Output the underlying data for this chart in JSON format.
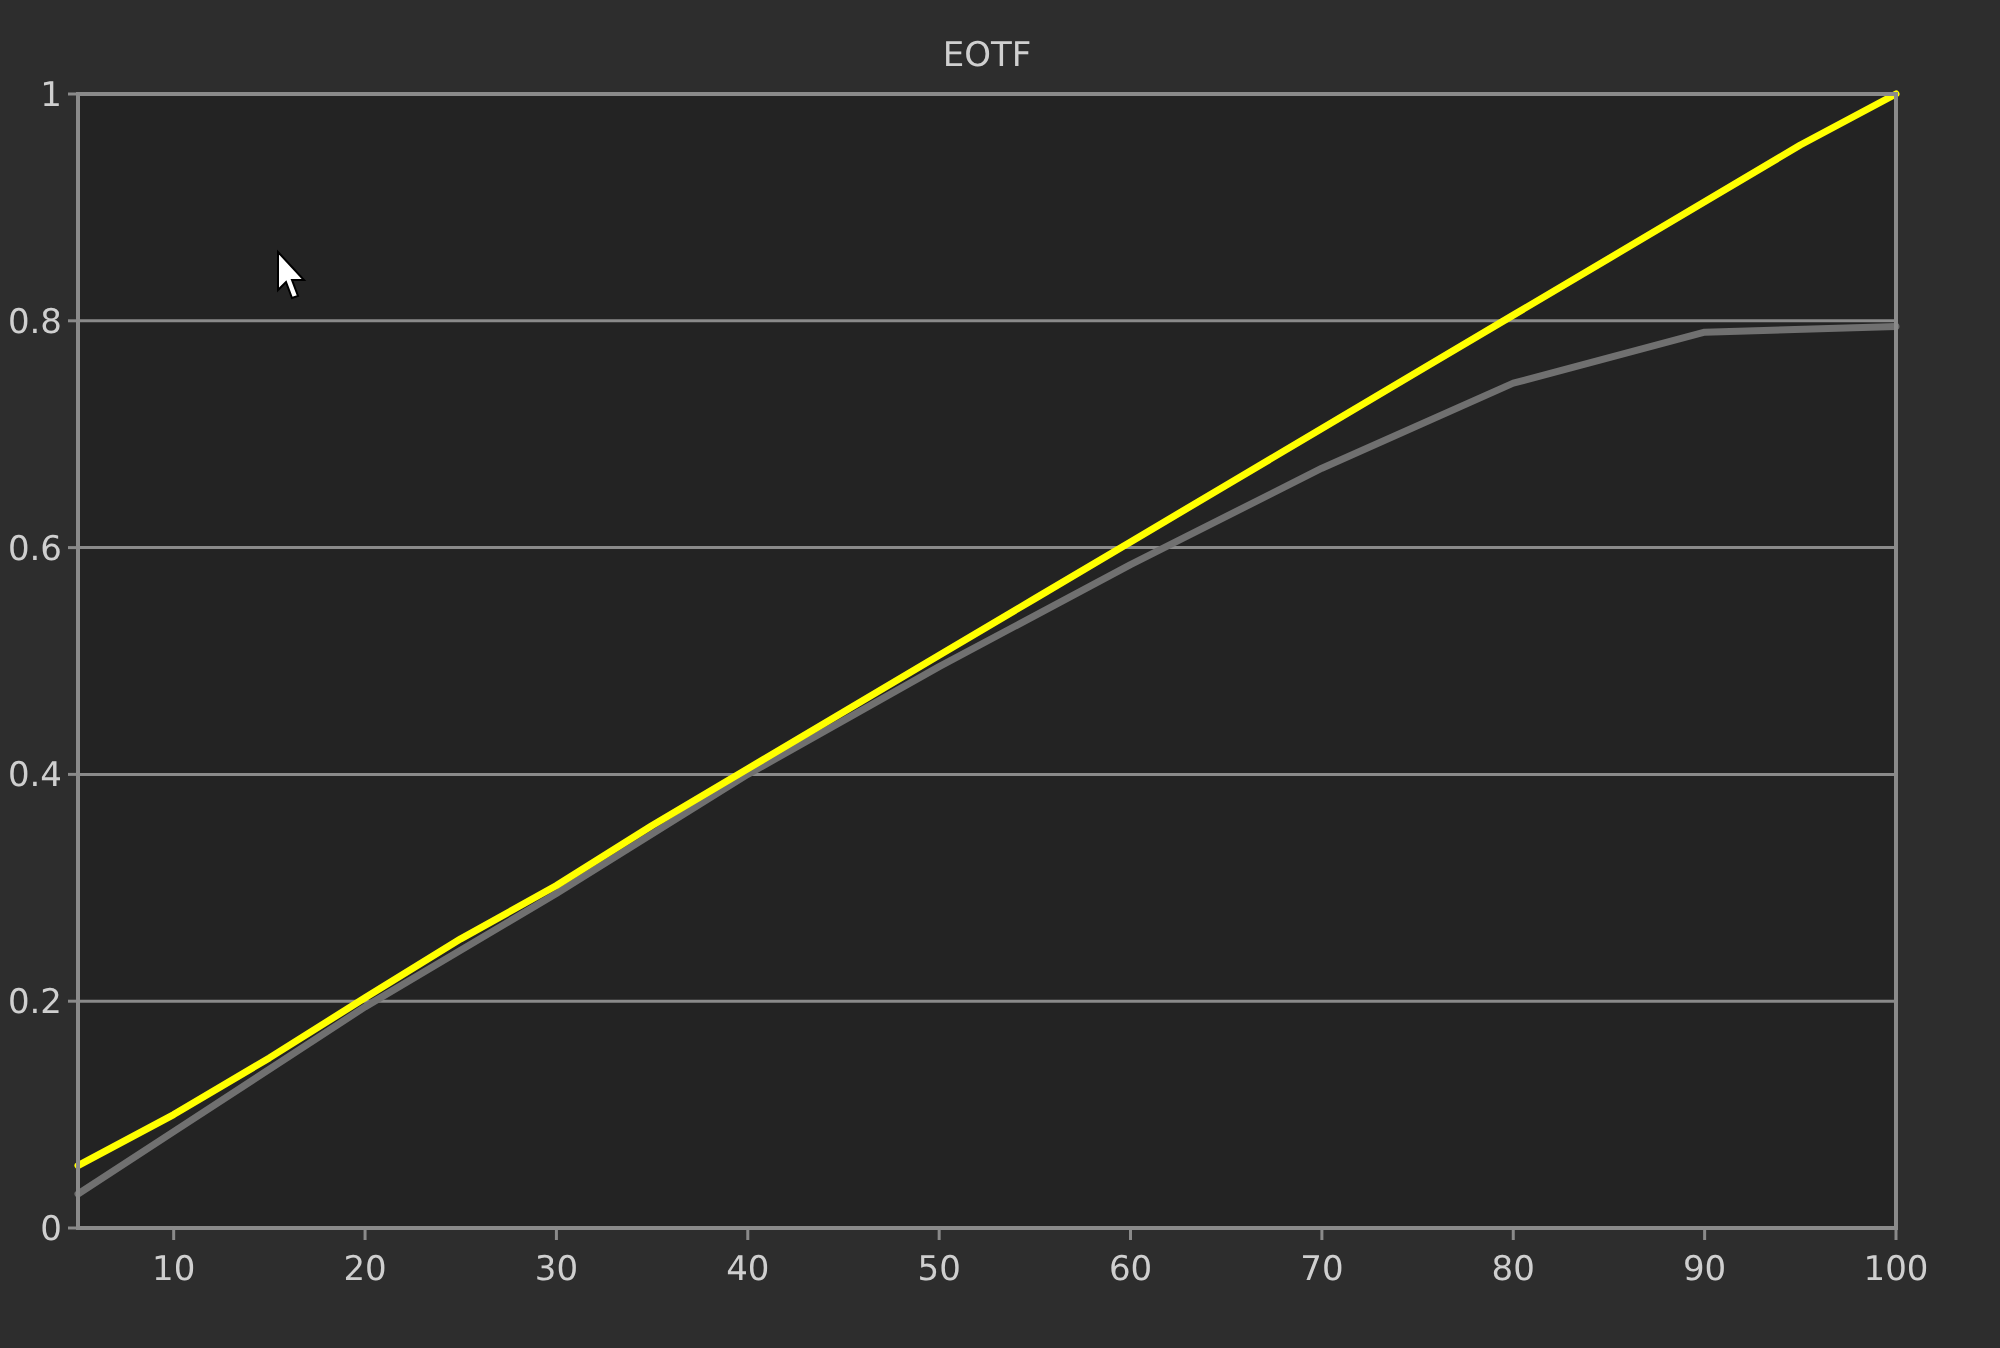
{
  "chart_data": {
    "type": "line",
    "title": "EOTF",
    "x": [
      5,
      10,
      15,
      20,
      25,
      30,
      35,
      40,
      45,
      50,
      55,
      60,
      65,
      70,
      75,
      80,
      85,
      90,
      95,
      100
    ],
    "series": [
      {
        "color": "#707070",
        "x": [
          5,
          10,
          20,
          30,
          40,
          50,
          60,
          70,
          80,
          90,
          100
        ],
        "values": [
          0.03,
          0.085,
          0.195,
          0.295,
          0.4,
          0.495,
          0.585,
          0.67,
          0.745,
          0.79,
          0.795
        ]
      },
      {
        "color": "#ffff00",
        "values": [
          0.055,
          0.1,
          0.15,
          0.203,
          0.255,
          0.302,
          0.355,
          0.405,
          0.455,
          0.505,
          0.555,
          0.605,
          0.655,
          0.705,
          0.755,
          0.805,
          0.855,
          0.905,
          0.955,
          1.0
        ]
      }
    ],
    "xlim": [
      5,
      100
    ],
    "xticks": [
      10,
      20,
      30,
      40,
      50,
      60,
      70,
      80,
      90,
      100
    ],
    "ylim": [
      0,
      1
    ],
    "yticks": [
      0,
      0.2,
      0.4,
      0.6,
      0.8,
      1
    ],
    "grid": "y",
    "marker": "none",
    "line_style": "solid"
  }
}
